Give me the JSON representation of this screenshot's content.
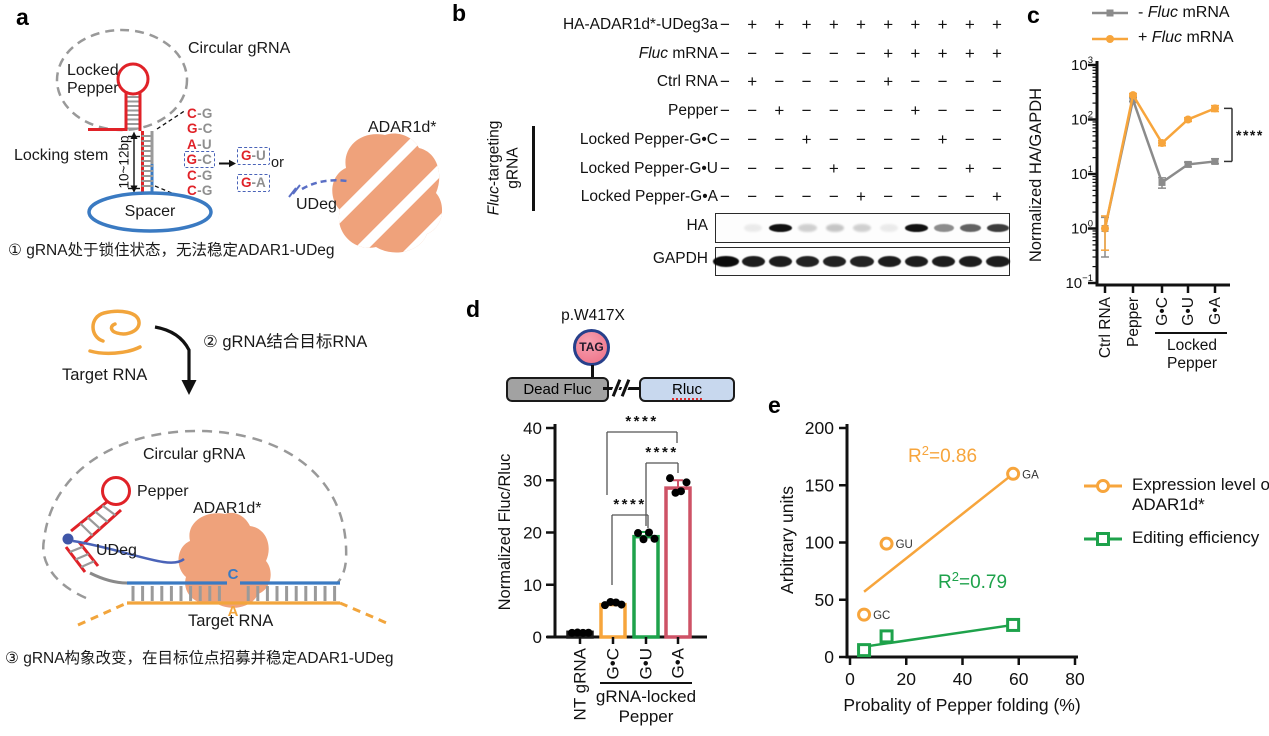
{
  "figure": {
    "panels": {
      "a": {
        "label": "a",
        "top": {
          "circular_grna_label": "Circular gRNA",
          "locked_pepper_line1": "Locked",
          "locked_pepper_line2": "Pepper",
          "locking_stem_label": "Locking stem",
          "stem_length_label": "10~12bp",
          "spacer_label": "Spacer",
          "base_pairs": [
            {
              "left": "C",
              "right": "G",
              "boxed": false
            },
            {
              "left": "G",
              "right": "C",
              "boxed": false
            },
            {
              "left": "A",
              "right": "U",
              "boxed": false
            },
            {
              "left": "G",
              "right": "C",
              "boxed": true
            },
            {
              "left": "C",
              "right": "G",
              "boxed": false
            },
            {
              "left": "C",
              "right": "G",
              "boxed": false
            }
          ],
          "mutation_options": [
            {
              "left": "G",
              "right": "U"
            },
            {
              "left": "G",
              "right": "A"
            }
          ],
          "or_label": "or",
          "adar_label": "ADAR1d*",
          "udeg_label": "UDeg"
        },
        "step1_caption": "① gRNA处于锁住状态，无法稳定ADAR1-UDeg",
        "middle": {
          "target_rna_label": "Target RNA",
          "step2_caption": "② gRNA结合目标RNA"
        },
        "bottom": {
          "circular_grna_label": "Circular gRNA",
          "pepper_label": "Pepper",
          "adar_label": "ADAR1d*",
          "udeg_label": "UDeg",
          "edited_c": "C",
          "target_a": "A",
          "target_rna_label": "Target RNA"
        },
        "step3_caption": "③ gRNA构象改变，在目标位点招募并稳定ADAR1-UDeg"
      },
      "b": {
        "label": "b",
        "rows": [
          {
            "italic": "",
            "rest": "HA-ADAR1d*-UDeg3a",
            "symbols": [
              "−",
              "+",
              "+",
              "+",
              "+",
              "+",
              "+",
              "+",
              "+",
              "+",
              "+"
            ]
          },
          {
            "italic": "Fluc",
            "rest": " mRNA",
            "symbols": [
              "−",
              "−",
              "−",
              "−",
              "−",
              "−",
              "+",
              "+",
              "+",
              "+",
              "+"
            ]
          },
          {
            "italic": "",
            "rest": "Ctrl RNA",
            "symbols": [
              "−",
              "+",
              "−",
              "−",
              "−",
              "−",
              "+",
              "−",
              "−",
              "−",
              "−"
            ]
          },
          {
            "italic": "",
            "rest": "Pepper",
            "symbols": [
              "−",
              "−",
              "+",
              "−",
              "−",
              "−",
              "−",
              "+",
              "−",
              "−",
              "−"
            ]
          },
          {
            "italic": "",
            "rest": "Locked Pepper-G•C",
            "symbols": [
              "−",
              "−",
              "−",
              "+",
              "−",
              "−",
              "−",
              "−",
              "+",
              "−",
              "−"
            ]
          },
          {
            "italic": "",
            "rest": "Locked Pepper-G•U",
            "symbols": [
              "−",
              "−",
              "−",
              "−",
              "+",
              "−",
              "−",
              "−",
              "−",
              "+",
              "−"
            ]
          },
          {
            "italic": "",
            "rest": "Locked Pepper-G•A",
            "symbols": [
              "−",
              "−",
              "−",
              "−",
              "−",
              "+",
              "−",
              "−",
              "−",
              "−",
              "+"
            ]
          }
        ],
        "group_label_italic": "Fluc",
        "group_label_rest": "-targeting",
        "group_label_line2": "gRNA",
        "blots": [
          {
            "label": "HA",
            "band_intensity": [
              0,
              0.07,
              0.95,
              0.18,
              0.22,
              0.18,
              0.07,
              0.95,
              0.45,
              0.62,
              0.78
            ]
          },
          {
            "label": "GAPDH",
            "band_intensity": [
              0.97,
              0.9,
              0.9,
              0.88,
              0.88,
              0.88,
              0.9,
              0.9,
              0.9,
              0.9,
              0.9
            ]
          }
        ]
      },
      "c": {
        "label": "c"
      },
      "d": {
        "label": "d",
        "construct": {
          "mutation_label": "p.W417X",
          "codon_label": "TAG",
          "left_box_label": "Dead Fluc",
          "right_box_label": "Rluc"
        }
      },
      "e": {
        "label": "e"
      }
    }
  },
  "chart_data": [
    {
      "id": "c",
      "type": "line",
      "categories": [
        "Ctrl RNA",
        "Pepper",
        "G•C",
        "G•U",
        "G•A"
      ],
      "group_label": [
        "Locked",
        "Pepper"
      ],
      "group_span": [
        2,
        4
      ],
      "ylabel": "Normalized HA/GAPDH",
      "yscale": "log",
      "ylim": [
        0.1,
        1000
      ],
      "ytick_exponents": [
        3,
        2,
        1,
        0,
        -1
      ],
      "significance": "****",
      "series": [
        {
          "name_prefix": "- ",
          "name_italic": "Fluc",
          "name_rest": " mRNA",
          "color": "#8b8b8b",
          "marker": "square",
          "values": [
            1.0,
            230,
            7,
            15,
            17
          ],
          "err_lo": [
            0.3,
            215,
            5.5,
            13.5,
            15.5
          ],
          "err_hi": [
            1.6,
            250,
            8.5,
            16.5,
            19
          ]
        },
        {
          "name_prefix": "+ ",
          "name_italic": "Fluc",
          "name_rest": " mRNA",
          "color": "#f7a53c",
          "marker": "circle",
          "values": [
            1.0,
            280,
            37,
            100,
            160
          ],
          "err_lo": [
            0.4,
            262,
            33,
            92,
            140
          ],
          "err_hi": [
            1.7,
            300,
            41,
            108,
            180
          ]
        }
      ]
    },
    {
      "id": "d",
      "type": "bar",
      "categories": [
        "NT gRNA",
        "G•C",
        "G•U",
        "G•A"
      ],
      "values": [
        0.9,
        6.2,
        19.2,
        28.5
      ],
      "bar_colors": [
        "#1a1a1a",
        "#f7a53c",
        "#1ea24b",
        "#ce5266"
      ],
      "err_hi": [
        0,
        0.4,
        0.9,
        1.5
      ],
      "dots": [
        [
          0.8,
          0.85,
          0.8,
          0.82
        ],
        [
          6.1,
          6.7,
          6.6,
          6.2
        ],
        [
          19.9,
          18.7,
          20.0,
          18.8
        ],
        [
          30.4,
          27.6,
          27.9,
          29.6
        ]
      ],
      "ylabel": "Normalized Fluc/Rluc",
      "ylim": [
        0,
        40
      ],
      "yticks": [
        0,
        10,
        20,
        30,
        40
      ],
      "group_label": [
        "gRNA-locked",
        "Pepper"
      ],
      "group_span": [
        1,
        3
      ],
      "significance": [
        {
          "from": 1,
          "to": 3,
          "label": "****"
        },
        {
          "from": 2,
          "to": 3,
          "label": "****"
        },
        {
          "from": 1,
          "to": 2,
          "label": "****"
        }
      ]
    },
    {
      "id": "e",
      "type": "scatter",
      "xlabel": "Probality of Pepper folding (%)",
      "ylabel": "Arbitrary units",
      "xlim": [
        0,
        80
      ],
      "ylim": [
        0,
        200
      ],
      "xticks": [
        0,
        20,
        40,
        60,
        80
      ],
      "yticks": [
        0,
        50,
        100,
        150,
        200
      ],
      "series": [
        {
          "name_line1": "Expression level of",
          "name_line2": "ADAR1d*",
          "marker": "circle",
          "color": "#f7a53c",
          "r2_base": "R",
          "r2_sup": "2",
          "r2_rest": "=0.86",
          "points": [
            {
              "x": 5,
              "y": 37,
              "label": "GC"
            },
            {
              "x": 13,
              "y": 99,
              "label": "GU"
            },
            {
              "x": 58,
              "y": 160,
              "label": "GA"
            }
          ],
          "fit_line": {
            "x1": 5,
            "y1": 57,
            "x2": 58,
            "y2": 160
          }
        },
        {
          "name_line1": "Editing efficiency",
          "name_line2": "",
          "marker": "square",
          "color": "#1ea24b",
          "r2_base": "R",
          "r2_sup": "2",
          "r2_rest": "=0.79",
          "points": [
            {
              "x": 5,
              "y": 6,
              "label": ""
            },
            {
              "x": 13,
              "y": 18,
              "label": ""
            },
            {
              "x": 58,
              "y": 28,
              "label": ""
            }
          ],
          "fit_line": {
            "x1": 5,
            "y1": 9,
            "x2": 58,
            "y2": 28
          }
        }
      ]
    }
  ]
}
